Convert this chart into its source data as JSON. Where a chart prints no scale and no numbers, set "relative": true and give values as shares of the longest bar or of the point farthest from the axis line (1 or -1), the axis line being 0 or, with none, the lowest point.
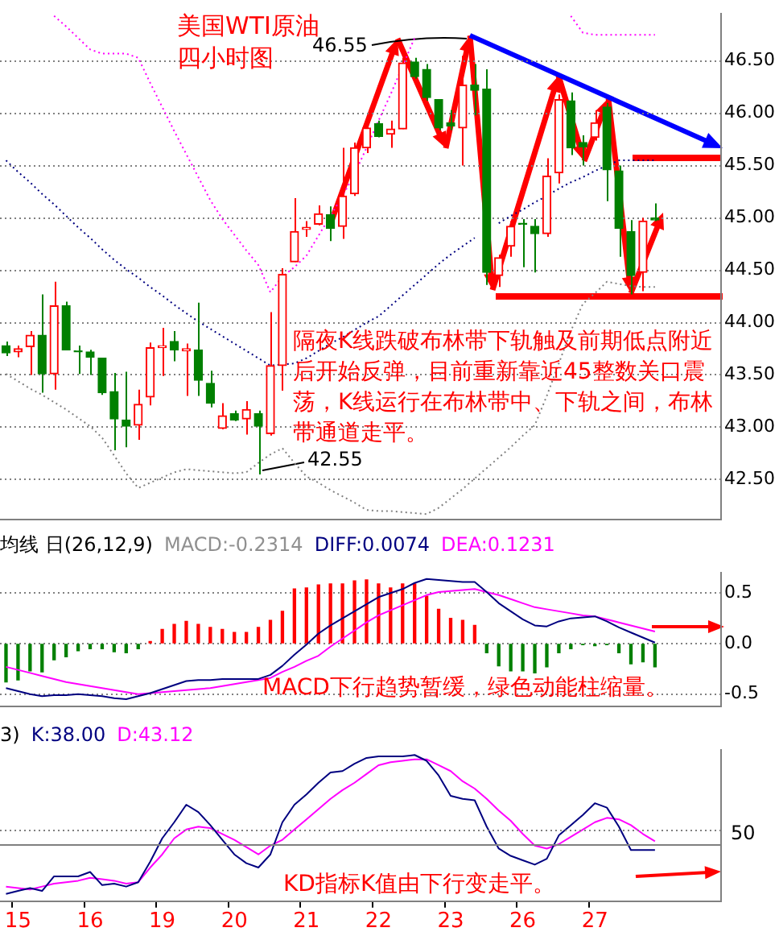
{
  "chart_data": [
    {
      "type": "candlestick",
      "title": "美国WTI原油",
      "subtitle": "四小时图",
      "categories": [
        null,
        "15",
        null,
        null,
        null,
        null,
        null,
        "16",
        null,
        null,
        null,
        null,
        null,
        "19",
        null,
        null,
        null,
        null,
        null,
        "20",
        null,
        null,
        null,
        null,
        null,
        "21",
        null,
        null,
        null,
        null,
        null,
        "22",
        null,
        null,
        null,
        null,
        null,
        "23",
        null,
        null,
        null,
        null,
        null,
        "26",
        null,
        null,
        null,
        null,
        null,
        "27",
        null,
        null,
        null,
        null,
        null,
        null,
        null,
        null,
        null,
        null
      ],
      "ohlc": [
        [
          43.78,
          43.82,
          43.68,
          43.71
        ],
        [
          43.72,
          43.78,
          43.67,
          43.75
        ],
        [
          43.77,
          43.92,
          43.5,
          43.88
        ],
        [
          43.88,
          44.27,
          43.33,
          43.51
        ],
        [
          43.51,
          44.39,
          43.36,
          44.16
        ],
        [
          44.16,
          44.2,
          43.74,
          43.74
        ],
        [
          43.73,
          43.78,
          43.51,
          43.72
        ],
        [
          43.72,
          43.74,
          43.5,
          43.67
        ],
        [
          43.66,
          43.66,
          43.31,
          43.33
        ],
        [
          43.34,
          43.52,
          42.78,
          43.08
        ],
        [
          43.07,
          43.53,
          42.81,
          43.01
        ],
        [
          43.02,
          43.36,
          42.88,
          43.22
        ],
        [
          43.29,
          43.81,
          43.21,
          43.76
        ],
        [
          43.76,
          43.95,
          43.49,
          43.78
        ],
        [
          43.82,
          43.92,
          43.63,
          43.74
        ],
        [
          43.73,
          43.8,
          43.3,
          43.75
        ],
        [
          43.74,
          44.19,
          43.3,
          43.45
        ],
        [
          43.42,
          43.54,
          43.19,
          43.23
        ],
        [
          42.99,
          43.23,
          42.98,
          43.11
        ],
        [
          43.13,
          43.16,
          43.06,
          43.07
        ],
        [
          43.08,
          43.25,
          42.93,
          43.17
        ],
        [
          43.13,
          43.16,
          42.55,
          43.01
        ],
        [
          42.94,
          44.1,
          42.92,
          43.59
        ],
        [
          43.59,
          44.52,
          43.35,
          44.46
        ],
        [
          44.58,
          45.19,
          44.58,
          44.87
        ],
        [
          44.89,
          44.97,
          44.82,
          44.91
        ],
        [
          44.94,
          45.12,
          44.93,
          45.04
        ],
        [
          45.03,
          45.11,
          44.78,
          44.9
        ],
        [
          44.92,
          45.67,
          44.8,
          45.21
        ],
        [
          45.23,
          45.72,
          45.21,
          45.67
        ],
        [
          45.67,
          45.91,
          45.62,
          45.86
        ],
        [
          45.9,
          45.93,
          45.77,
          45.78
        ],
        [
          45.8,
          45.93,
          45.67,
          45.85
        ],
        [
          45.85,
          46.53,
          45.85,
          46.48
        ],
        [
          46.49,
          46.53,
          46.33,
          46.35
        ],
        [
          46.42,
          46.47,
          46.12,
          46.15
        ],
        [
          46.13,
          46.13,
          45.84,
          45.86
        ],
        [
          45.91,
          46.03,
          45.84,
          45.88
        ],
        [
          45.86,
          46.55,
          45.5,
          46.27
        ],
        [
          46.27,
          46.47,
          45.98,
          46.22
        ],
        [
          46.23,
          46.42,
          44.36,
          44.48
        ],
        [
          44.45,
          44.65,
          44.34,
          44.62
        ],
        [
          44.73,
          44.97,
          44.63,
          44.92
        ],
        [
          44.95,
          44.99,
          44.53,
          44.94
        ],
        [
          44.92,
          44.99,
          44.48,
          44.85
        ],
        [
          44.85,
          45.57,
          44.82,
          45.4
        ],
        [
          45.43,
          46.18,
          45.33,
          46.13
        ],
        [
          46.12,
          46.2,
          45.6,
          45.67
        ],
        [
          45.72,
          45.79,
          45.5,
          45.68
        ],
        [
          45.77,
          46.03,
          45.74,
          45.91
        ],
        [
          46.06,
          46.1,
          45.16,
          45.46
        ],
        [
          45.45,
          45.5,
          44.63,
          44.9
        ],
        [
          44.87,
          44.98,
          44.27,
          44.45
        ],
        [
          44.48,
          45.0,
          44.3,
          44.97
        ],
        [
          45.0,
          45.14,
          44.97,
          44.98
        ],
        null,
        null,
        null,
        null,
        null
      ],
      "colors": [
        "#008000",
        "#ff0000",
        "#ff0000",
        "#008000",
        "#ff0000",
        "#008000",
        "#008000",
        "#008000",
        "#008000",
        "#008000",
        "#008000",
        "#ff0000",
        "#ff0000",
        "#ff0000",
        "#008000",
        "#ff0000",
        "#008000",
        "#008000",
        "#ff0000",
        "#008000",
        "#ff0000",
        "#008000",
        "#ff0000",
        "#ff0000",
        "#ff0000",
        "#ff0000",
        "#ff0000",
        "#008000",
        "#ff0000",
        "#ff0000",
        "#ff0000",
        "#008000",
        "#ff0000",
        "#ff0000",
        "#008000",
        "#008000",
        "#008000",
        "#008000",
        "#ff0000",
        "#008000",
        "#008000",
        "#ff0000",
        "#ff0000",
        "#008000",
        "#008000",
        "#ff0000",
        "#ff0000",
        "#008000",
        "#008000",
        "#ff0000",
        "#008000",
        "#008000",
        "#008000",
        "#ff0000",
        "#008000",
        null,
        null,
        null,
        null,
        null
      ],
      "series": [
        {
          "type": "line",
          "color": "#000080",
          "line_style": "dotted",
          "values": [
            45.55,
            45.44,
            45.34,
            45.23,
            45.13,
            45.02,
            44.91,
            44.81,
            44.7,
            44.6,
            44.51,
            44.43,
            44.34,
            44.26,
            44.17,
            44.09,
            44.01,
            43.94,
            43.87,
            43.8,
            43.73,
            43.66,
            43.59,
            43.6,
            43.61,
            43.66,
            43.73,
            43.8,
            43.86,
            43.93,
            44.0,
            44.06,
            44.16,
            44.26,
            44.36,
            44.46,
            44.56,
            44.65,
            44.73,
            44.81,
            null,
            44.95,
            45.02,
            45.08,
            45.15,
            45.21,
            45.28,
            45.34,
            45.39,
            45.45,
            45.5,
            45.55,
            45.55,
            45.55,
            45.55,
            null,
            null,
            null,
            null,
            null
          ]
        },
        {
          "type": "line",
          "color": "#ff00ff",
          "line_style": "dotted",
          "values": [
            null,
            null,
            null,
            null,
            46.93,
            46.83,
            46.72,
            46.61,
            46.57,
            46.57,
            46.57,
            46.53,
            46.29,
            46.06,
            45.83,
            45.61,
            45.39,
            45.17,
            44.99,
            44.84,
            44.69,
            44.55,
            44.29,
            44.44,
            44.53,
            44.64,
            44.83,
            45.02,
            45.21,
            45.42,
            45.67,
            45.93,
            46.18,
            46.45,
            46.72,
            null,
            null,
            null,
            null,
            null,
            null,
            null,
            null,
            null,
            null,
            null,
            null,
            46.93,
            46.77,
            46.75,
            46.75,
            46.75,
            46.75,
            46.75,
            46.75,
            null,
            null,
            null,
            null,
            null
          ]
        },
        {
          "type": "line",
          "color": "#808080",
          "line_style": "dotted",
          "values": [
            43.51,
            43.44,
            43.37,
            43.31,
            43.24,
            43.17,
            43.09,
            43.01,
            42.9,
            42.73,
            42.56,
            42.42,
            42.47,
            42.52,
            42.57,
            42.6,
            42.59,
            42.58,
            42.57,
            42.56,
            42.57,
            42.66,
            42.74,
            42.8,
            42.66,
            42.53,
            42.47,
            42.4,
            42.34,
            42.28,
            42.21,
            42.2,
            42.2,
            42.19,
            42.18,
            42.17,
            42.23,
            42.32,
            42.41,
            42.51,
            42.61,
            42.71,
            42.81,
            42.92,
            43.02,
            43.3,
            43.61,
            43.92,
            44.18,
            44.28,
            44.39,
            44.37,
            44.35,
            44.34,
            44.34,
            null,
            null,
            null,
            null,
            null
          ]
        }
      ],
      "ylim": [
        42.12,
        46.95
      ],
      "yticks": [
        {
          "value": 42.5,
          "label": "42.50"
        },
        {
          "value": 43,
          "label": "43.00"
        },
        {
          "value": 43.5,
          "label": "43.50"
        },
        {
          "value": 44,
          "label": "44.00"
        },
        {
          "value": 44.5,
          "label": "44.50"
        },
        {
          "value": 45,
          "label": "45.00"
        },
        {
          "value": 45.5,
          "label": "45.50"
        },
        {
          "value": 46,
          "label": "46.00"
        },
        {
          "value": 46.5,
          "label": "46.50"
        }
      ],
      "grid": "y",
      "tick_labels": "y",
      "marker": "none",
      "annotations": [
        "隔夜K线跌破布林带下轨触及前期低点附近后开始反弹，目前重新靠近45整数关口震荡，K线运行在布林带中、下轨之间，布林带通道走平。",
        "42.55",
        "46.55"
      ]
    },
    {
      "type": "bar",
      "categories": [
        null,
        "15",
        null,
        null,
        null,
        null,
        null,
        "16",
        null,
        null,
        null,
        null,
        null,
        "19",
        null,
        null,
        null,
        null,
        null,
        "20",
        null,
        null,
        null,
        null,
        null,
        "21",
        null,
        null,
        null,
        null,
        null,
        "22",
        null,
        null,
        null,
        null,
        null,
        "23",
        null,
        null,
        null,
        null,
        null,
        "26",
        null,
        null,
        null,
        null,
        null,
        "27",
        null,
        null,
        null,
        null,
        null,
        null,
        null,
        null,
        null,
        null
      ],
      "series": [
        {
          "name": "MACD:-0.2314",
          "values": [
            -0.38,
            -0.36,
            -0.27,
            -0.28,
            -0.16,
            -0.13,
            -0.07,
            -0.05,
            -0.05,
            -0.08,
            -0.09,
            -0.05,
            0.02,
            0.14,
            0.19,
            0.22,
            0.19,
            0.16,
            0.14,
            0.11,
            0.11,
            0.16,
            0.23,
            0.32,
            0.54,
            0.55,
            0.58,
            0.59,
            0.59,
            0.62,
            0.63,
            0.59,
            0.55,
            0.59,
            0.59,
            0.47,
            0.34,
            0.25,
            0.23,
            0.18,
            -0.09,
            -0.22,
            -0.27,
            -0.27,
            -0.29,
            -0.23,
            -0.09,
            -0.05,
            -0.01,
            -0.02,
            -0.01,
            -0.09,
            -0.2,
            -0.18,
            -0.23,
            null,
            null,
            null,
            null,
            null
          ],
          "colors": [
            "#008000",
            "#008000",
            "#008000",
            "#008000",
            "#008000",
            "#008000",
            "#008000",
            "#008000",
            "#008000",
            "#008000",
            "#008000",
            "#008000",
            "#ff0000",
            "#ff0000",
            "#ff0000",
            "#ff0000",
            "#ff0000",
            "#ff0000",
            "#ff0000",
            "#ff0000",
            "#ff0000",
            "#ff0000",
            "#ff0000",
            "#ff0000",
            "#ff0000",
            "#ff0000",
            "#ff0000",
            "#ff0000",
            "#ff0000",
            "#ff0000",
            "#ff0000",
            "#ff0000",
            "#ff0000",
            "#ff0000",
            "#ff0000",
            "#ff0000",
            "#ff0000",
            "#ff0000",
            "#ff0000",
            "#ff0000",
            "#008000",
            "#008000",
            "#008000",
            "#008000",
            "#008000",
            "#008000",
            "#008000",
            "#008000",
            "#008000",
            "#008000",
            "#008000",
            "#008000",
            "#008000",
            "#008000",
            "#008000",
            null,
            null,
            null,
            null,
            null
          ]
        },
        {
          "type": "line",
          "name": "DIFF:0.0074",
          "color": "#000080",
          "values": [
            -0.44,
            -0.47,
            -0.5,
            -0.52,
            -0.51,
            -0.51,
            -0.5,
            -0.51,
            -0.52,
            -0.54,
            -0.55,
            -0.52,
            -0.49,
            -0.45,
            -0.41,
            -0.37,
            -0.36,
            -0.36,
            -0.35,
            -0.35,
            -0.35,
            -0.35,
            -0.31,
            -0.22,
            -0.11,
            -0.01,
            0.1,
            0.18,
            0.25,
            0.32,
            0.39,
            0.46,
            0.5,
            0.54,
            0.6,
            0.64,
            0.63,
            0.62,
            0.61,
            0.61,
            0.51,
            0.4,
            0.32,
            0.24,
            0.18,
            0.17,
            0.22,
            0.25,
            0.26,
            0.27,
            0.22,
            0.16,
            0.11,
            0.06,
            0.01,
            null,
            null,
            null,
            null,
            null
          ]
        },
        {
          "type": "line",
          "name": "DEA:0.1231",
          "color": "#ff00ff",
          "values": [
            -0.23,
            -0.26,
            -0.29,
            -0.32,
            -0.35,
            -0.38,
            -0.4,
            -0.42,
            -0.44,
            -0.46,
            -0.48,
            -0.5,
            -0.49,
            -0.48,
            -0.47,
            -0.46,
            -0.45,
            -0.44,
            -0.42,
            -0.4,
            -0.38,
            -0.36,
            -0.34,
            -0.28,
            -0.23,
            -0.17,
            -0.12,
            -0.03,
            0.05,
            0.13,
            0.21,
            0.28,
            0.33,
            0.38,
            0.43,
            0.48,
            0.51,
            0.52,
            0.53,
            0.54,
            0.51,
            0.48,
            0.44,
            0.4,
            0.36,
            0.34,
            0.32,
            0.3,
            0.28,
            0.27,
            0.24,
            0.21,
            0.18,
            0.15,
            0.12,
            null,
            null,
            null,
            null,
            null
          ]
        }
      ],
      "legend": "top left",
      "legend_title": "均线 日(26,12,9)",
      "ylim": [
        -0.62,
        0.7
      ],
      "yticks": [
        {
          "value": -0.5,
          "label": "-0.5"
        },
        {
          "value": 0,
          "label": "0.0"
        },
        {
          "value": 0.5,
          "label": "0.5"
        }
      ],
      "grid": "y",
      "tick_labels": "y",
      "marker": "none",
      "annotations": [
        "MACD下行趋势暂缓，绿色动能柱缩量。"
      ]
    },
    {
      "type": "line",
      "categories": [
        null,
        "15",
        null,
        null,
        null,
        null,
        null,
        "16",
        null,
        null,
        null,
        null,
        null,
        "19",
        null,
        null,
        null,
        null,
        null,
        "20",
        null,
        null,
        null,
        null,
        null,
        "21",
        null,
        null,
        null,
        null,
        null,
        "22",
        null,
        null,
        null,
        null,
        null,
        "23",
        null,
        null,
        null,
        null,
        null,
        "26",
        null,
        null,
        null,
        null,
        null,
        "27",
        null,
        null,
        null,
        null,
        null,
        null,
        null,
        null,
        null,
        null
      ],
      "series": [
        {
          "name": "K:38.00",
          "color": "#000080",
          "values": [
            0.05,
            0.07,
            0.09,
            0.07,
            0.17,
            0.17,
            0.17,
            0.2,
            0.11,
            0.12,
            0.1,
            0.13,
            0.27,
            0.43,
            0.54,
            0.66,
            0.61,
            0.52,
            0.42,
            0.32,
            0.26,
            0.23,
            0.32,
            0.54,
            0.66,
            0.73,
            0.81,
            0.88,
            0.89,
            0.94,
            0.98,
            0.99,
            0.99,
            0.99,
            1,
            0.96,
            0.86,
            0.72,
            0.7,
            0.69,
            0.51,
            0.36,
            0.31,
            0.28,
            0.25,
            0.29,
            0.45,
            0.52,
            0.59,
            0.67,
            0.64,
            0.51,
            0.35,
            0.35,
            0.35,
            null,
            null,
            null,
            null,
            null
          ]
        },
        {
          "name": "D:43.12",
          "color": "#ff00ff",
          "values": [
            0.1,
            0.09,
            0.08,
            0.1,
            0.12,
            0.13,
            0.14,
            0.16,
            0.15,
            0.14,
            0.12,
            0.13,
            0.23,
            0.32,
            0.43,
            0.49,
            0.51,
            0.5,
            0.46,
            0.42,
            0.37,
            0.32,
            0.38,
            0.42,
            0.49,
            0.56,
            0.63,
            0.7,
            0.76,
            0.81,
            0.87,
            0.93,
            0.95,
            0.96,
            0.97,
            0.97,
            0.93,
            0.89,
            0.82,
            0.77,
            0.7,
            0.62,
            0.55,
            0.46,
            0.38,
            0.36,
            0.39,
            0.44,
            0.49,
            0.54,
            0.57,
            0.56,
            0.52,
            0.46,
            0.41,
            null,
            null,
            null,
            null,
            null
          ]
        }
      ],
      "legend": "top left",
      "legend_title": "3)",
      "relative": true,
      "marker": "none",
      "ref_lines": [
        {
          "axis": "y",
          "value": 0.49,
          "color": "#808080",
          "line_style": "dotted"
        },
        {
          "axis": "y",
          "value": 0.39,
          "color": "#808080"
        }
      ],
      "annotations": [
        "KD指标K值由下行变走平。",
        "50"
      ]
    }
  ]
}
